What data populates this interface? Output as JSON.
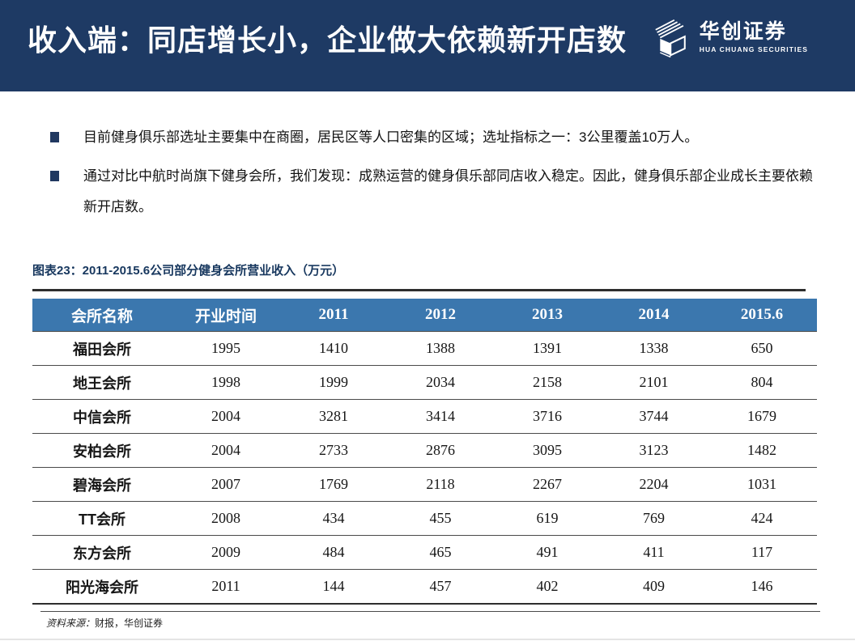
{
  "header": {
    "title": "收入端：同店增长小，企业做大依赖新开店数",
    "brand": {
      "name": "华创证券",
      "subtitle": "HUA CHUANG SECURITIES"
    }
  },
  "bullets": [
    "目前健身俱乐部选址主要集中在商圈，居民区等人口密集的区域；选址指标之一：3公里覆盖10万人。",
    "通过对比中航时尚旗下健身会所，我们发现：成熟运营的健身俱乐部同店收入稳定。因此，健身俱乐部企业成长主要依赖新开店数。"
  ],
  "figure": {
    "caption": "图表23：2011-2015.6公司部分健身会所营业收入（万元）",
    "table": {
      "columns": [
        "会所名称",
        "开业时间",
        "2011",
        "2012",
        "2013",
        "2014",
        "2015.6"
      ],
      "rows": [
        [
          "福田会所",
          "1995",
          "1410",
          "1388",
          "1391",
          "1338",
          "650"
        ],
        [
          "地王会所",
          "1998",
          "1999",
          "2034",
          "2158",
          "2101",
          "804"
        ],
        [
          "中信会所",
          "2004",
          "3281",
          "3414",
          "3716",
          "3744",
          "1679"
        ],
        [
          "安柏会所",
          "2004",
          "2733",
          "2876",
          "3095",
          "3123",
          "1482"
        ],
        [
          "碧海会所",
          "2007",
          "1769",
          "2118",
          "2267",
          "2204",
          "1031"
        ],
        [
          "TT会所",
          "2008",
          "434",
          "455",
          "619",
          "769",
          "424"
        ],
        [
          "东方会所",
          "2009",
          "484",
          "465",
          "491",
          "411",
          "117"
        ],
        [
          "阳光海会所",
          "2011",
          "144",
          "457",
          "402",
          "409",
          "146"
        ]
      ]
    },
    "source_label": "资料来源：",
    "source_text": "财报，华创证券"
  },
  "icons": {
    "logo": "huachuang-cube-icon",
    "bullet": "square-bullet-icon"
  },
  "colors": {
    "header_bg": "#1e3a64",
    "table_header_bg": "#3b77ae",
    "caption_text": "#17375e",
    "rule_dark": "#2e2e2e"
  }
}
